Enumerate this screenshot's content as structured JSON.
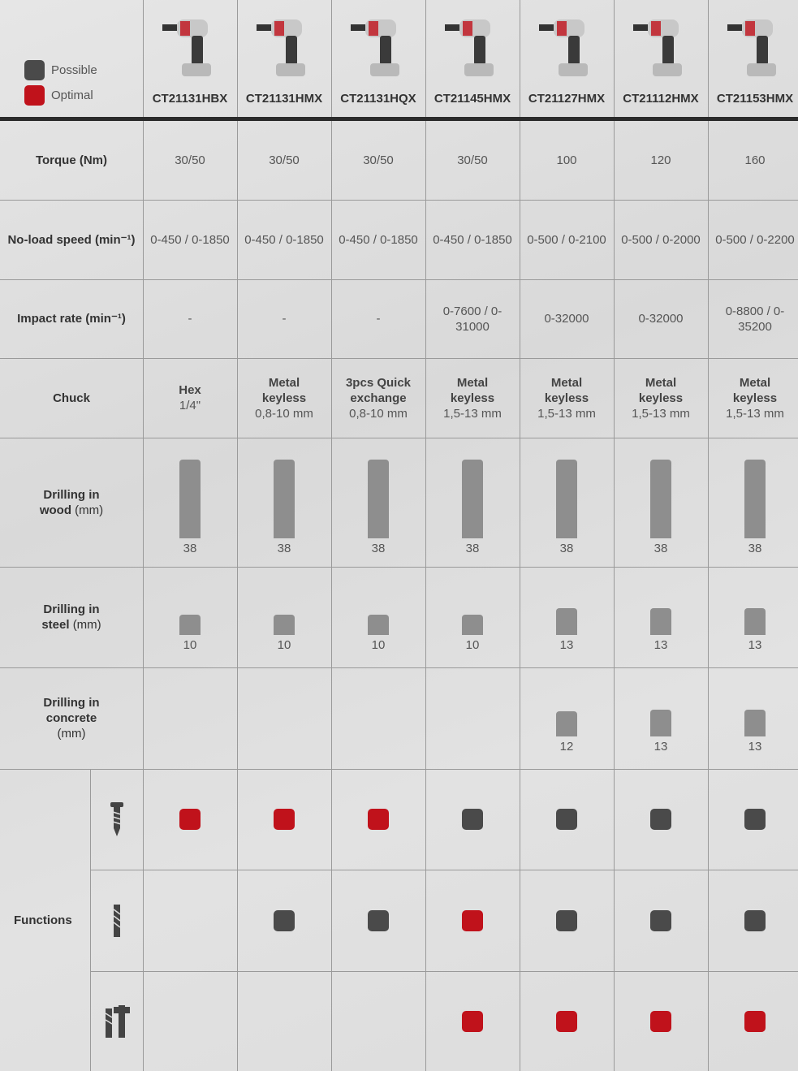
{
  "legend": [
    {
      "label": "Possible",
      "color": "#4a4a4a"
    },
    {
      "label": "Optimal",
      "color": "#c0121b"
    }
  ],
  "products": [
    "CT21131HBX",
    "CT21131HMX",
    "CT21131HQX",
    "CT21145HMX",
    "CT21127HMX",
    "CT21112HMX",
    "CT21153HMX"
  ],
  "specs": [
    {
      "label": "Torque (Nm)",
      "values": [
        "30/50",
        "30/50",
        "30/50",
        "30/50",
        100,
        120,
        160
      ]
    },
    {
      "label": "No-load speed (min⁻¹)",
      "values": [
        "0-450 / 0-1850",
        "0-450 / 0-1850",
        "0-450 / 0-1850",
        "0-450 / 0-1850",
        "0-500 / 0-2100",
        "0-500 / 0-2000",
        "0-500 / 0-2200"
      ]
    },
    {
      "label": "Impact rate (min⁻¹)",
      "values": [
        "-",
        "-",
        "-",
        "0-7600 / 0-31000",
        "0-32000",
        "0-32000",
        "0-8800 / 0-35200"
      ]
    }
  ],
  "chuck": {
    "label": "Chuck",
    "values": [
      {
        "type": "Hex",
        "size": "1/4\""
      },
      {
        "type": "Metal keyless",
        "size": "0,8-10 mm"
      },
      {
        "type": "3pcs Quick exchange",
        "size": "0,8-10 mm"
      },
      {
        "type": "Metal keyless",
        "size": "1,5-13 mm"
      },
      {
        "type": "Metal keyless",
        "size": "1,5-13 mm"
      },
      {
        "type": "Metal keyless",
        "size": "1,5-13 mm"
      },
      {
        "type": "Metal keyless",
        "size": "1,5-13 mm"
      }
    ]
  },
  "drilling": [
    {
      "label": "Drilling in wood",
      "unit": "(mm)",
      "values": [
        38,
        38,
        38,
        38,
        38,
        38,
        38
      ]
    },
    {
      "label": "Drilling in steel",
      "unit": "(mm)",
      "values": [
        10,
        10,
        10,
        10,
        13,
        13,
        13
      ]
    },
    {
      "label": "Drilling in concrete",
      "unit": "(mm)",
      "values": [
        null,
        null,
        null,
        null,
        12,
        13,
        13
      ]
    }
  ],
  "functions": {
    "label": "Functions",
    "rows": [
      [
        1,
        1,
        1,
        0,
        0,
        0,
        0
      ],
      [
        null,
        0,
        0,
        1,
        0,
        0,
        0
      ],
      [
        null,
        null,
        null,
        1,
        1,
        1,
        1
      ]
    ]
  }
}
